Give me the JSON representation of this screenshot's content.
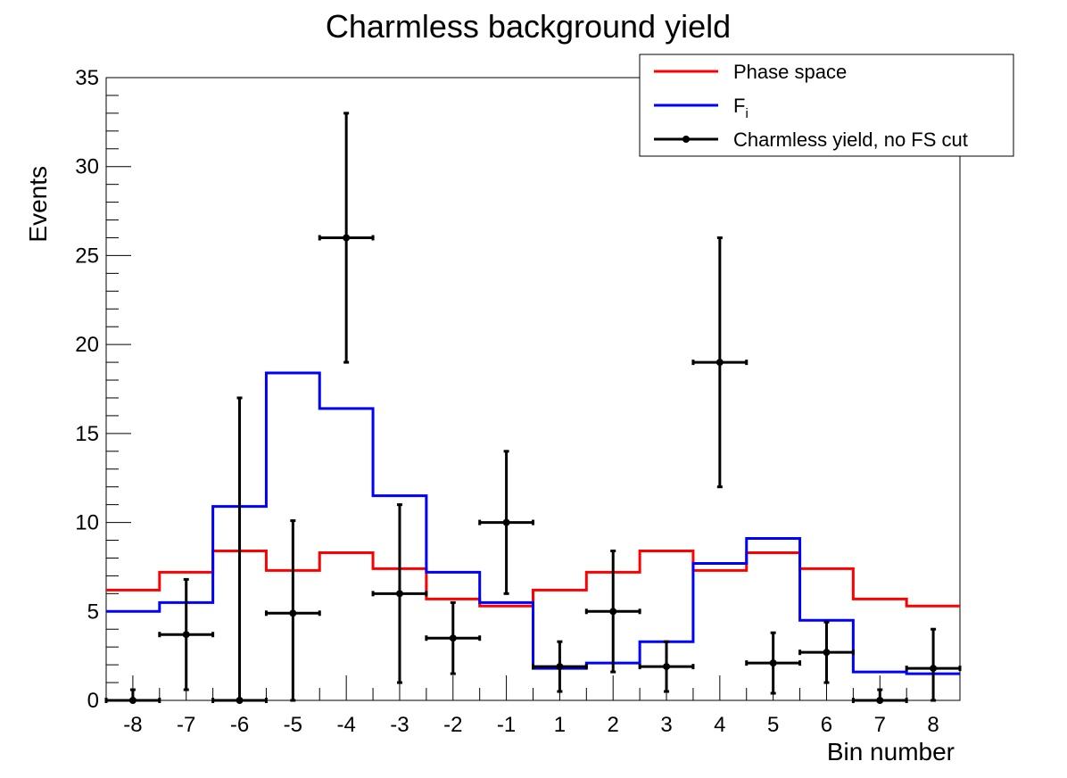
{
  "chart_data": {
    "type": "histogram",
    "title": "Charmless background yield",
    "xlabel": "Bin number",
    "ylabel": "Events",
    "ylim": [
      0,
      35
    ],
    "y_ticks": [
      "0",
      "5",
      "10",
      "15",
      "20",
      "25",
      "30",
      "35"
    ],
    "categories": [
      "-8",
      "-7",
      "-6",
      "-5",
      "-4",
      "-3",
      "-2",
      "-1",
      "1",
      "2",
      "3",
      "4",
      "5",
      "6",
      "7",
      "8"
    ],
    "grid": false,
    "legend_position": "top-right",
    "series": [
      {
        "name": "Phase space",
        "style": "step",
        "color": "#ff0000",
        "values": [
          6.2,
          7.2,
          8.4,
          7.3,
          8.3,
          7.4,
          5.7,
          5.3,
          6.2,
          7.2,
          8.4,
          7.3,
          8.3,
          7.4,
          5.7,
          5.3
        ]
      },
      {
        "name": "F_i",
        "style": "step",
        "color": "#0000ff",
        "values": [
          5.0,
          5.5,
          10.9,
          18.4,
          16.4,
          11.5,
          7.2,
          5.5,
          1.8,
          2.1,
          3.3,
          7.7,
          9.1,
          4.5,
          1.6,
          1.5
        ]
      },
      {
        "name": "Charmless yield, no FS cut",
        "style": "points-with-errors",
        "color": "#000000",
        "values": [
          0,
          3.7,
          0,
          4.9,
          26,
          6,
          3.5,
          10,
          1.9,
          5,
          1.9,
          19,
          2.1,
          2.7,
          0,
          1.8
        ],
        "err_low": [
          0,
          3.1,
          0,
          4.9,
          7,
          5,
          2.0,
          4,
          1.4,
          3.4,
          1.4,
          7,
          1.7,
          1.7,
          0,
          1.8
        ],
        "err_high": [
          0.6,
          3.1,
          17,
          5.2,
          7,
          5,
          2.0,
          4,
          1.4,
          3.4,
          1.4,
          7,
          1.7,
          1.7,
          0.6,
          2.2
        ]
      }
    ]
  }
}
